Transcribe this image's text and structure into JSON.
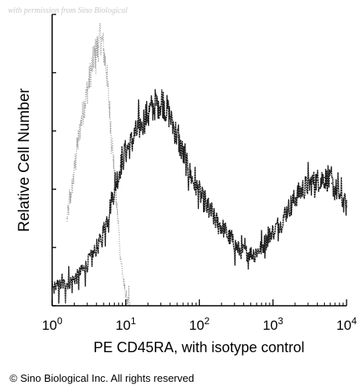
{
  "watermark": "with permission from Sino Biological",
  "copyright": "© Sino Biological Inc. All rights reserved",
  "chart_data": {
    "type": "line",
    "xlabel": "PE CD45RA, with isotype control",
    "ylabel": "Relative Cell Number",
    "xscale": "log",
    "xlim": [
      1,
      10000
    ],
    "ylim": [
      0,
      1
    ],
    "x_ticks": [
      {
        "value": 1,
        "base": "10",
        "exp": "0"
      },
      {
        "value": 10,
        "base": "10",
        "exp": "1"
      },
      {
        "value": 100,
        "base": "10",
        "exp": "2"
      },
      {
        "value": 1000,
        "base": "10",
        "exp": "3"
      },
      {
        "value": 10000,
        "base": "10",
        "exp": "4"
      }
    ],
    "y_ticks": [
      0,
      0.2,
      0.4,
      0.6,
      0.8,
      1.0
    ],
    "series": [
      {
        "role": "isotype-control",
        "style": "light-gray-dotted",
        "color": "#9a9a9a",
        "x": [
          1.6,
          1.9,
          2.2,
          2.6,
          3.0,
          3.4,
          3.8,
          4.2,
          4.6,
          5.0,
          5.5,
          6.0,
          6.8,
          7.8,
          8.6,
          9.5,
          10.5,
          11.5
        ],
        "y": [
          0.3,
          0.42,
          0.55,
          0.66,
          0.74,
          0.81,
          0.86,
          0.89,
          0.92,
          0.88,
          0.8,
          0.68,
          0.5,
          0.3,
          0.16,
          0.07,
          0.02,
          0.0
        ]
      },
      {
        "role": "PE CD45RA",
        "style": "dark-noisy",
        "color": "#1a1a1a",
        "x": [
          1.0,
          1.3,
          1.7,
          2.2,
          2.8,
          3.5,
          4.5,
          5.6,
          7.0,
          8.5,
          10,
          12,
          15,
          20,
          25,
          32,
          40,
          50,
          60,
          70,
          85,
          100,
          130,
          170,
          220,
          280,
          350,
          450,
          560,
          700,
          900,
          1200,
          1600,
          2000,
          2500,
          3200,
          4000,
          5000,
          6300,
          8000,
          10000
        ],
        "y": [
          0.06,
          0.07,
          0.08,
          0.1,
          0.13,
          0.17,
          0.22,
          0.3,
          0.4,
          0.48,
          0.53,
          0.56,
          0.61,
          0.66,
          0.69,
          0.7,
          0.65,
          0.58,
          0.52,
          0.47,
          0.42,
          0.39,
          0.33,
          0.29,
          0.26,
          0.22,
          0.19,
          0.18,
          0.18,
          0.2,
          0.24,
          0.28,
          0.33,
          0.37,
          0.4,
          0.42,
          0.43,
          0.44,
          0.42,
          0.38,
          0.34
        ]
      }
    ]
  }
}
